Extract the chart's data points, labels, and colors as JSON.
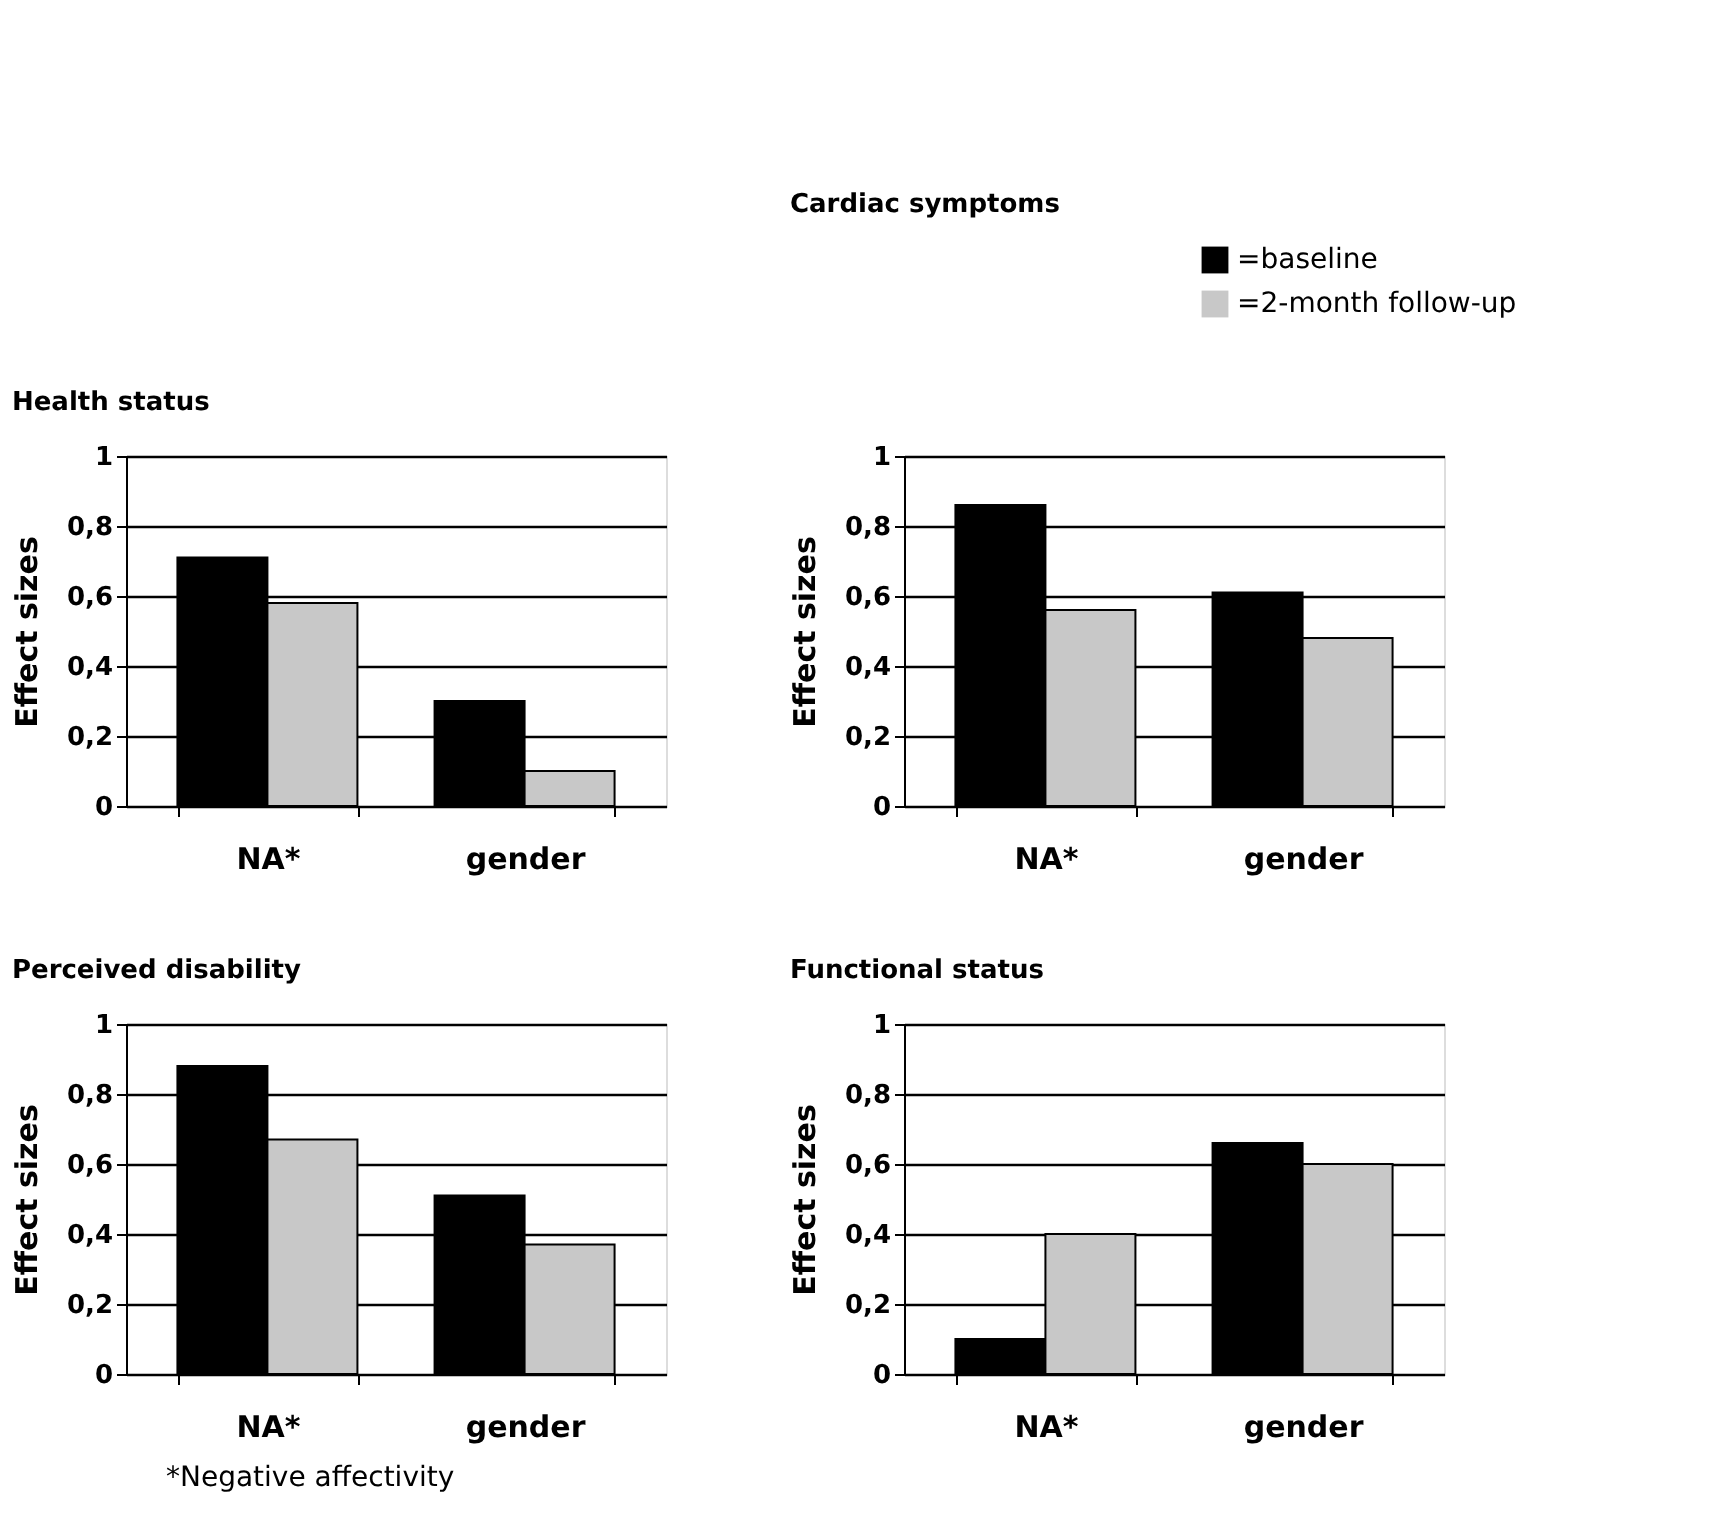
{
  "chart_data": [
    {
      "type": "bar",
      "title": "Health status",
      "ylabel": "Effect sizes",
      "categories": [
        "NA*",
        "gender"
      ],
      "ylim": [
        0,
        1
      ],
      "yticks": [
        0,
        {
          "value": 0.2,
          "label": "0,2"
        },
        {
          "value": 0.4,
          "label": "0,4"
        },
        {
          "value": 0.6,
          "label": "0,6"
        },
        {
          "value": 0.8,
          "label": "0,8"
        },
        1
      ],
      "grid": "y",
      "series": [
        {
          "color": "#000000",
          "values": [
            0.71,
            0.3
          ]
        },
        {
          "color": "#c8c8c8",
          "values": [
            0.58,
            0.1
          ]
        }
      ]
    },
    {
      "type": "bar",
      "title": "Cardiac symptoms",
      "ylabel": "Effect sizes",
      "categories": [
        "NA*",
        "gender"
      ],
      "ylim": [
        0,
        1
      ],
      "yticks": [
        0,
        {
          "value": 0.2,
          "label": "0,2"
        },
        {
          "value": 0.4,
          "label": "0,4"
        },
        {
          "value": 0.6,
          "label": "0,6"
        },
        {
          "value": 0.8,
          "label": "0,8"
        },
        1
      ],
      "grid": "y",
      "legend": "top right",
      "series": [
        {
          "name": "=baseline",
          "color": "#000000",
          "values": [
            0.86,
            0.61
          ]
        },
        {
          "name": "=2-month follow-up",
          "color": "#c8c8c8",
          "values": [
            0.56,
            0.48
          ]
        }
      ]
    },
    {
      "type": "bar",
      "title": "Perceived disability",
      "ylabel": "Effect sizes",
      "categories": [
        "NA*",
        "gender"
      ],
      "ylim": [
        0,
        1
      ],
      "yticks": [
        0,
        {
          "value": 0.2,
          "label": "0,2"
        },
        {
          "value": 0.4,
          "label": "0,4"
        },
        {
          "value": 0.6,
          "label": "0,6"
        },
        {
          "value": 0.8,
          "label": "0,8"
        },
        1
      ],
      "grid": "y",
      "annotations": [
        "*Negative affectivity"
      ],
      "series": [
        {
          "color": "#000000",
          "values": [
            0.88,
            0.51
          ]
        },
        {
          "color": "#c8c8c8",
          "values": [
            0.67,
            0.37
          ]
        }
      ]
    },
    {
      "type": "bar",
      "title": "Functional status",
      "ylabel": "Effect sizes",
      "categories": [
        "NA*",
        "gender"
      ],
      "ylim": [
        0,
        1
      ],
      "yticks": [
        0,
        {
          "value": 0.2,
          "label": "0,2"
        },
        {
          "value": 0.4,
          "label": "0,4"
        },
        {
          "value": 0.6,
          "label": "0,6"
        },
        {
          "value": 0.8,
          "label": "0,8"
        },
        1
      ],
      "grid": "y",
      "series": [
        {
          "color": "#000000",
          "values": [
            0.1,
            0.66
          ]
        },
        {
          "color": "#c8c8c8",
          "values": [
            0.4,
            0.6
          ]
        }
      ]
    }
  ]
}
